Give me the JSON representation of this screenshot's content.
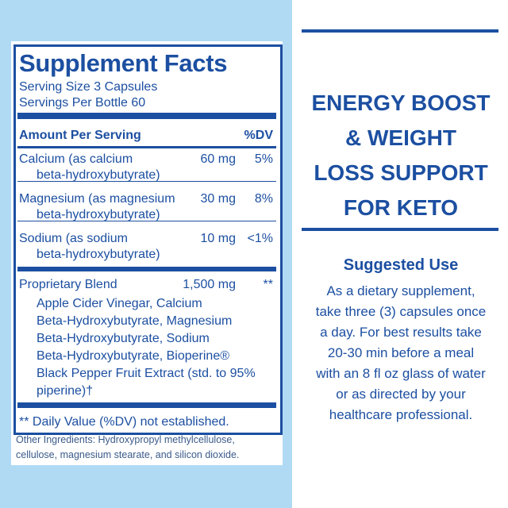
{
  "facts": {
    "title": "Supplement Facts",
    "serving_size": "Serving Size 3 Capsules",
    "servings_per": "Servings Per Bottle 60",
    "header": {
      "amount": "Amount Per Serving",
      "dv": "%DV"
    },
    "rows": [
      {
        "name": "Calcium (as calcium",
        "name2": "beta-hydroxybutyrate)",
        "amount": "60 mg",
        "dv": "5%"
      },
      {
        "name": "Magnesium (as magnesium",
        "name2": "beta-hydroxybutyrate)",
        "amount": "30 mg",
        "dv": "8%"
      },
      {
        "name": "Sodium (as sodium",
        "name2": "beta-hydroxybutyrate)",
        "amount": "10 mg",
        "dv": "<1%"
      }
    ],
    "blend": {
      "name": "Proprietary Blend",
      "amount": "1,500 mg",
      "dv": "**",
      "lines": [
        "Apple Cider Vinegar, Calcium",
        "Beta-Hydroxybutyrate, Magnesium",
        "Beta-Hydroxybutyrate, Sodium",
        "Beta-Hydroxybutyrate, Bioperine®",
        "Black Pepper Fruit Extract (std. to 95%",
        "piperine)†"
      ]
    },
    "footnote": "** Daily Value (%DV) not established.",
    "other_ingredients": [
      "Other Ingredients: Hydroxypropyl methylcellulose,",
      "cellulose, magnesium stearate, and silicon dioxide."
    ]
  },
  "headline": [
    "ENERGY BOOST",
    "& WEIGHT",
    "LOSS SUPPORT",
    "FOR KETO"
  ],
  "suggested_use": {
    "title": "Suggested Use",
    "lines": [
      "As a dietary supplement,",
      "take three (3) capsules once",
      "a day. For best results take",
      "20-30 min before a meal",
      "with an 8 fl oz glass of water",
      "or as directed by your",
      "healthcare professional."
    ]
  }
}
